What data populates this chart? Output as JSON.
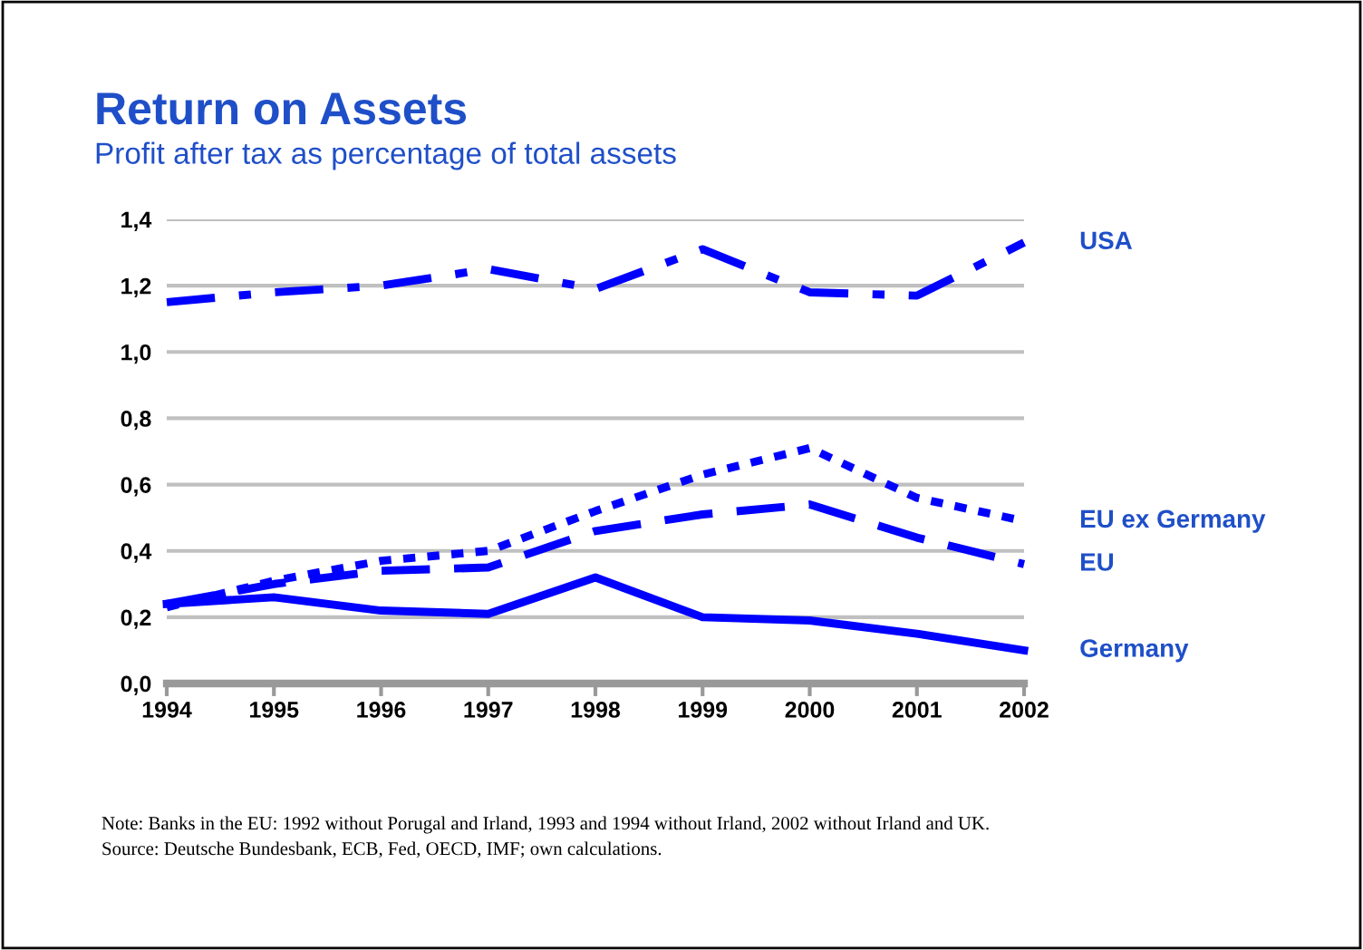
{
  "chart_data": {
    "type": "line",
    "title": "Return on Assets",
    "subtitle": "Profit after tax as percentage of total assets",
    "x": [
      1994,
      1995,
      1996,
      1997,
      1998,
      1999,
      2000,
      2001,
      2002
    ],
    "series": [
      {
        "name": "USA",
        "color": "#0000ff",
        "line_style": "dashdot",
        "values": [
          1.15,
          1.18,
          1.2,
          1.25,
          1.19,
          1.31,
          1.18,
          1.17,
          1.33
        ]
      },
      {
        "name": "EU ex Germany",
        "color": "#0000ff",
        "line_style": "dotted",
        "values": [
          0.23,
          0.31,
          0.37,
          0.4,
          0.52,
          0.63,
          0.71,
          0.56,
          0.49
        ]
      },
      {
        "name": "EU",
        "color": "#0000ff",
        "line_style": "dashed",
        "values": [
          0.24,
          0.3,
          0.34,
          0.35,
          0.46,
          0.51,
          0.54,
          0.44,
          0.36
        ]
      },
      {
        "name": "Germany",
        "color": "#0000ff",
        "line_style": "solid",
        "values": [
          0.24,
          0.26,
          0.22,
          0.21,
          0.32,
          0.2,
          0.19,
          0.15,
          0.1
        ]
      }
    ],
    "xlim": [
      1994,
      2002
    ],
    "xticks": [
      1994,
      1995,
      1996,
      1997,
      1998,
      1999,
      2000,
      2001,
      2002
    ],
    "ylim": [
      0,
      1.4
    ],
    "yticks": [
      {
        "value": 0,
        "label": "0,0"
      },
      {
        "value": 0.2,
        "label": "0,2"
      },
      {
        "value": 0.4,
        "label": "0,4"
      },
      {
        "value": 0.6,
        "label": "0,6"
      },
      {
        "value": 0.8,
        "label": "0,8"
      },
      {
        "value": 1.0,
        "label": "1,0"
      },
      {
        "value": 1.2,
        "label": "1,2"
      },
      {
        "value": 1.4,
        "label": "1,4"
      }
    ],
    "grid": "y",
    "legend": false,
    "marker": "none",
    "annotations": [
      "Note: Banks in the EU: 1992 without Porugal and Irland, 1993 and 1994 without Irland, 2002 without Irland and UK.",
      "Source: Deutsche Bundesbank, ECB, Fed, OECD, IMF; own calculations."
    ]
  }
}
